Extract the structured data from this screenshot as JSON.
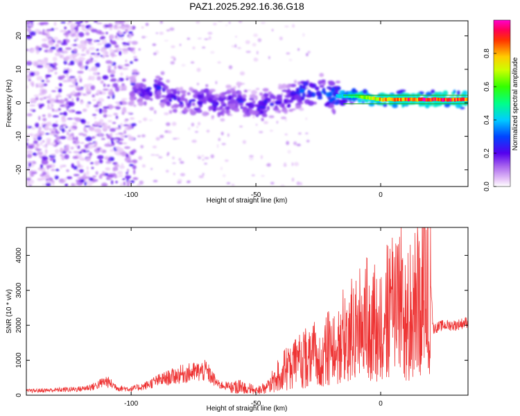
{
  "title": "PAZ1.2025.292.16.36.G18",
  "chart_data": [
    {
      "type": "heatmap",
      "name": "spectrogram",
      "xlabel": "Height of straight line (km)",
      "ylabel": "Frequency (Hz)",
      "xlim": [
        -142,
        35
      ],
      "ylim": [
        -25,
        24.5
      ],
      "x_ticks": [
        -100,
        -50,
        0
      ],
      "y_ticks": [
        -20,
        -10,
        0,
        10,
        20
      ],
      "x_tick_labels": [
        "-100",
        "-50",
        "0"
      ],
      "y_tick_labels": [
        "-20",
        "-10",
        "0",
        "10",
        "20"
      ],
      "colorbar": {
        "label": "Normalized spectral amplitude",
        "range": [
          0,
          1
        ],
        "ticks": [
          0.0,
          0.2,
          0.4,
          0.6,
          0.8
        ],
        "tick_labels": [
          "0.0",
          "0.2",
          "0.4",
          "0.6",
          "0.8"
        ],
        "colormap": "rainbow (white-magenta-blue-cyan-green-yellow-red)"
      },
      "ridge": {
        "description": "dominant frequency track",
        "x": [
          -100,
          -95,
          -90,
          -85,
          -80,
          -75,
          -70,
          -65,
          -60,
          -55,
          -50,
          -45,
          -40,
          -35,
          -30,
          -25,
          -20,
          -15,
          -10,
          -5,
          0,
          5,
          10,
          15,
          20,
          25,
          30,
          35
        ],
        "y": [
          4,
          3,
          5,
          2,
          0,
          0,
          1,
          -1,
          1,
          0,
          -2,
          0,
          0,
          2,
          4,
          3,
          2,
          2,
          2,
          1.5,
          1,
          1,
          1,
          1,
          1,
          1,
          1,
          1
        ],
        "amplitude": [
          0.15,
          0.25,
          0.28,
          0.25,
          0.22,
          0.22,
          0.25,
          0.25,
          0.22,
          0.25,
          0.22,
          0.25,
          0.22,
          0.28,
          0.32,
          0.32,
          0.35,
          0.42,
          0.55,
          0.7,
          0.8,
          0.85,
          0.88,
          0.9,
          0.92,
          0.92,
          0.92,
          0.92
        ]
      }
    },
    {
      "type": "line",
      "name": "snr",
      "xlabel": "Height of straight line (km)",
      "ylabel": "SNR (10 * v/v)",
      "xlim": [
        -142,
        35
      ],
      "ylim": [
        0,
        4800
      ],
      "x_ticks": [
        -100,
        -50,
        0
      ],
      "y_ticks": [
        0,
        1000,
        2000,
        3000,
        4000
      ],
      "x_tick_labels": [
        "-100",
        "-50",
        "0"
      ],
      "y_tick_labels": [
        "0",
        "1000",
        "2000",
        "3000",
        "4000"
      ],
      "color": "#ee3333",
      "series": [
        {
          "name": "SNR",
          "x": [
            -142,
            -130,
            -120,
            -115,
            -110,
            -105,
            -100,
            -95,
            -90,
            -85,
            -80,
            -75,
            -70,
            -65,
            -60,
            -55,
            -50,
            -45,
            -40,
            -35,
            -30,
            -25,
            -20,
            -15,
            -10,
            -5,
            0,
            5,
            8,
            10,
            13,
            15,
            18,
            20,
            21,
            25,
            30,
            35
          ],
          "y": [
            120,
            150,
            180,
            250,
            400,
            200,
            180,
            250,
            400,
            500,
            600,
            650,
            700,
            300,
            250,
            300,
            150,
            300,
            800,
            1000,
            1300,
            1400,
            1600,
            2000,
            2300,
            2600,
            2500,
            3200,
            3400,
            2600,
            3000,
            3300,
            3700,
            3500,
            1900,
            2000,
            2000,
            2100
          ]
        }
      ]
    }
  ]
}
